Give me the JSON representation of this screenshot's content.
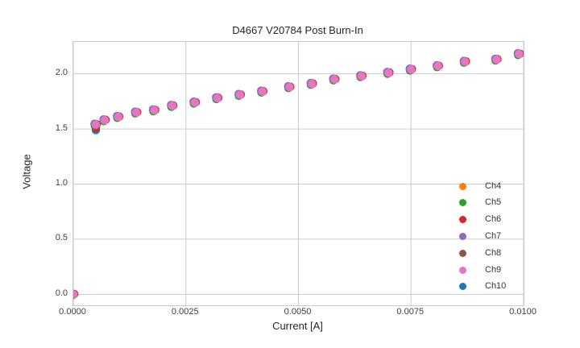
{
  "chart_data": {
    "type": "scatter",
    "title": "D4667 V20784 Post Burn-In",
    "xlabel": "Current [A]",
    "ylabel": "Voltage",
    "grid": true,
    "legend_position": "lower right",
    "xlim": [
      0.0,
      0.01
    ],
    "ylim": [
      -0.1,
      2.29
    ],
    "xticks": {
      "values": [
        0.0,
        0.0025,
        0.005,
        0.0075,
        0.01
      ],
      "labels": [
        "0.0000",
        "0.0025",
        "0.0050",
        "0.0075",
        "0.0100"
      ]
    },
    "yticks": {
      "values": [
        0.0,
        0.5,
        1.0,
        1.5,
        2.0
      ],
      "labels": [
        "0.0",
        "0.5",
        "1.0",
        "1.5",
        "2.0"
      ]
    },
    "x": [
      0.0,
      0.0005,
      0.0007,
      0.001,
      0.0014,
      0.0018,
      0.0022,
      0.0027,
      0.0032,
      0.0037,
      0.0042,
      0.0048,
      0.0053,
      0.0058,
      0.0064,
      0.007,
      0.0075,
      0.0081,
      0.0087,
      0.0094,
      0.0099
    ],
    "series": [
      {
        "name": "Ch4",
        "color": "#ff7f0e",
        "y": [
          0.0,
          1.54,
          1.58,
          1.61,
          1.65,
          1.67,
          1.71,
          1.74,
          1.78,
          1.81,
          1.84,
          1.88,
          1.91,
          1.95,
          1.98,
          2.01,
          2.04,
          2.07,
          2.11,
          2.13,
          2.18
        ]
      },
      {
        "name": "Ch5",
        "color": "#2ca02c",
        "y": [
          0.0,
          1.54,
          1.58,
          1.61,
          1.65,
          1.67,
          1.71,
          1.74,
          1.78,
          1.81,
          1.84,
          1.88,
          1.91,
          1.95,
          1.98,
          2.01,
          2.04,
          2.07,
          2.11,
          2.13,
          2.18
        ]
      },
      {
        "name": "Ch6",
        "color": "#d62728",
        "y": [
          0.0,
          1.51,
          1.58,
          1.61,
          1.65,
          1.67,
          1.71,
          1.74,
          1.78,
          1.81,
          1.84,
          1.88,
          1.91,
          1.95,
          1.98,
          2.01,
          2.04,
          2.07,
          2.11,
          2.13,
          2.18
        ]
      },
      {
        "name": "Ch7",
        "color": "#9467bd",
        "y": [
          0.0,
          1.54,
          1.58,
          1.61,
          1.65,
          1.67,
          1.71,
          1.74,
          1.78,
          1.81,
          1.84,
          1.88,
          1.91,
          1.95,
          1.98,
          2.01,
          2.04,
          2.07,
          2.11,
          2.13,
          2.18
        ]
      },
      {
        "name": "Ch8",
        "color": "#8c564b",
        "y": [
          0.0,
          1.54,
          1.58,
          1.61,
          1.65,
          1.67,
          1.71,
          1.74,
          1.78,
          1.81,
          1.84,
          1.88,
          1.91,
          1.95,
          1.98,
          2.01,
          2.04,
          2.07,
          2.11,
          2.13,
          2.18
        ]
      },
      {
        "name": "Ch9",
        "color": "#e377c2",
        "y": [
          0.0,
          1.54,
          1.58,
          1.61,
          1.65,
          1.67,
          1.71,
          1.74,
          1.78,
          1.81,
          1.84,
          1.88,
          1.91,
          1.95,
          1.98,
          2.01,
          2.04,
          2.07,
          2.11,
          2.13,
          2.18
        ]
      },
      {
        "name": "Ch10",
        "color": "#1f77b4",
        "y": [
          0.0,
          1.49,
          1.58,
          1.61,
          1.65,
          1.67,
          1.71,
          1.74,
          1.78,
          1.81,
          1.84,
          1.88,
          1.91,
          1.95,
          1.98,
          2.01,
          2.04,
          2.07,
          2.11,
          2.13,
          2.18
        ]
      }
    ],
    "style": {
      "grid_color": "#cccccc",
      "marker_radius": 5.2,
      "top_series": "Ch9"
    }
  }
}
